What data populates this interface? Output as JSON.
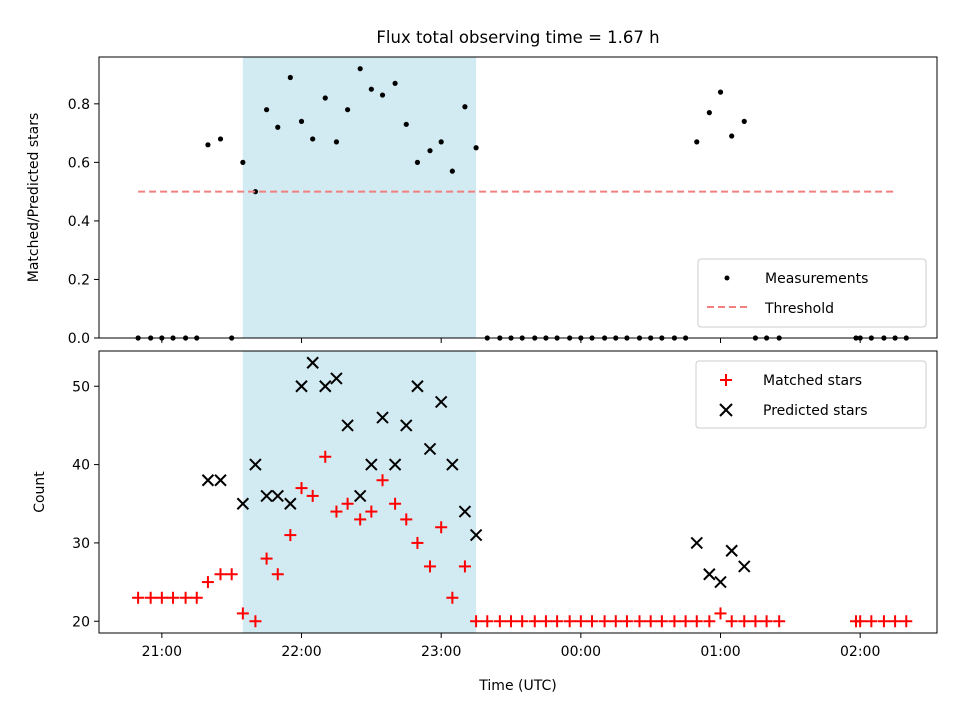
{
  "chart_data": [
    {
      "type": "scatter",
      "title": "Flux total observing time = 1.67 h",
      "xlabel": "",
      "ylabel": "Matched/Predicted stars",
      "xlim": [
        20.55,
        26.55
      ],
      "ylim": [
        0,
        0.96
      ],
      "yticks": [
        0.0,
        0.2,
        0.4,
        0.6,
        0.8
      ],
      "ytick_labels": [
        "0.0",
        "0.2",
        "0.4",
        "0.6",
        "0.8"
      ],
      "shaded_region": {
        "x": [
          21.58,
          23.25
        ],
        "color": "#add8e6"
      },
      "legend": {
        "position": "lower-right",
        "entries": [
          "Measurements",
          "Threshold"
        ]
      },
      "series": [
        {
          "name": "Measurements",
          "marker": "dot",
          "color": "#000000",
          "x": [
            20.83,
            20.92,
            21.0,
            21.08,
            21.17,
            21.25,
            21.33,
            21.42,
            21.5,
            21.58,
            21.67,
            21.75,
            21.83,
            21.92,
            22.0,
            22.08,
            22.17,
            22.25,
            22.33,
            22.42,
            22.5,
            22.58,
            22.67,
            22.75,
            22.83,
            22.92,
            23.0,
            23.08,
            23.17,
            23.25,
            23.33,
            23.42,
            23.5,
            23.58,
            23.67,
            23.75,
            23.83,
            23.92,
            24.0,
            24.08,
            24.17,
            24.25,
            24.33,
            24.42,
            24.5,
            24.58,
            24.67,
            24.75,
            24.83,
            24.92,
            25.0,
            25.08,
            25.17,
            25.25,
            25.33,
            25.42,
            25.97,
            26.0,
            26.08,
            26.17,
            26.25,
            26.33
          ],
          "y": [
            0,
            0,
            0,
            0,
            0,
            0,
            0.66,
            0.68,
            0,
            0.6,
            0.5,
            0.78,
            0.72,
            0.89,
            0.74,
            0.68,
            0.82,
            0.67,
            0.78,
            0.92,
            0.85,
            0.83,
            0.87,
            0.73,
            0.6,
            0.64,
            0.67,
            0.57,
            0.79,
            0.65,
            0,
            0,
            0,
            0,
            0,
            0,
            0,
            0,
            0,
            0,
            0,
            0,
            0,
            0,
            0,
            0,
            0,
            0,
            0.67,
            0.77,
            0.84,
            0.69,
            0.74,
            0,
            0,
            0,
            0,
            0,
            0,
            0,
            0,
            0
          ]
        },
        {
          "name": "Threshold",
          "style": "dashed",
          "color": "#f08080",
          "x": [
            20.83,
            26.25
          ],
          "y": [
            0.5,
            0.5
          ]
        }
      ]
    },
    {
      "type": "scatter",
      "title": "",
      "xlabel": "Time (UTC)",
      "ylabel": "Count",
      "xlim": [
        20.55,
        26.55
      ],
      "ylim": [
        18.5,
        54.5
      ],
      "xticks": [
        21,
        22,
        23,
        24,
        25,
        26
      ],
      "xtick_labels": [
        "21:00",
        "22:00",
        "23:00",
        "00:00",
        "01:00",
        "02:00"
      ],
      "yticks": [
        20,
        30,
        40,
        50
      ],
      "ytick_labels": [
        "20",
        "30",
        "40",
        "50"
      ],
      "shaded_region": {
        "x": [
          21.58,
          23.25
        ],
        "color": "#add8e6"
      },
      "legend": {
        "position": "top-right",
        "entries": [
          "Matched stars",
          "Predicted stars"
        ]
      },
      "series": [
        {
          "name": "Matched stars",
          "marker": "plus",
          "color": "#ff0000",
          "x": [
            20.83,
            20.92,
            21.0,
            21.08,
            21.17,
            21.25,
            21.33,
            21.42,
            21.5,
            21.58,
            21.67,
            21.75,
            21.83,
            21.92,
            22.0,
            22.08,
            22.17,
            22.25,
            22.33,
            22.42,
            22.5,
            22.58,
            22.67,
            22.75,
            22.83,
            22.92,
            23.0,
            23.08,
            23.17,
            23.25,
            23.33,
            23.42,
            23.5,
            23.58,
            23.67,
            23.75,
            23.83,
            23.92,
            24.0,
            24.08,
            24.17,
            24.25,
            24.33,
            24.42,
            24.5,
            24.58,
            24.67,
            24.75,
            24.83,
            24.92,
            25.0,
            25.08,
            25.17,
            25.25,
            25.33,
            25.42,
            25.97,
            26.0,
            26.08,
            26.17,
            26.25,
            26.33
          ],
          "y": [
            23,
            23,
            23,
            23,
            23,
            23,
            25,
            26,
            26,
            21,
            20,
            28,
            26,
            31,
            37,
            36,
            41,
            34,
            35,
            33,
            34,
            38,
            35,
            33,
            30,
            27,
            32,
            23,
            27,
            20,
            20,
            20,
            20,
            20,
            20,
            20,
            20,
            20,
            20,
            20,
            20,
            20,
            20,
            20,
            20,
            20,
            20,
            20,
            20,
            20,
            21,
            20,
            20,
            20,
            20,
            20,
            20,
            20,
            20,
            20,
            20,
            20
          ]
        },
        {
          "name": "Predicted stars",
          "marker": "x",
          "color": "#000000",
          "x": [
            21.33,
            21.42,
            21.58,
            21.67,
            21.75,
            21.83,
            21.92,
            22.0,
            22.08,
            22.17,
            22.25,
            22.33,
            22.42,
            22.5,
            22.58,
            22.67,
            22.75,
            22.83,
            22.92,
            23.0,
            23.08,
            23.17,
            23.25,
            24.83,
            24.92,
            25.0,
            25.08,
            25.17
          ],
          "y": [
            38,
            38,
            35,
            40,
            36,
            36,
            35,
            50,
            53,
            50,
            51,
            45,
            36,
            40,
            46,
            40,
            45,
            50,
            42,
            48,
            40,
            34,
            31,
            30,
            26,
            25,
            29,
            27
          ]
        }
      ]
    }
  ]
}
